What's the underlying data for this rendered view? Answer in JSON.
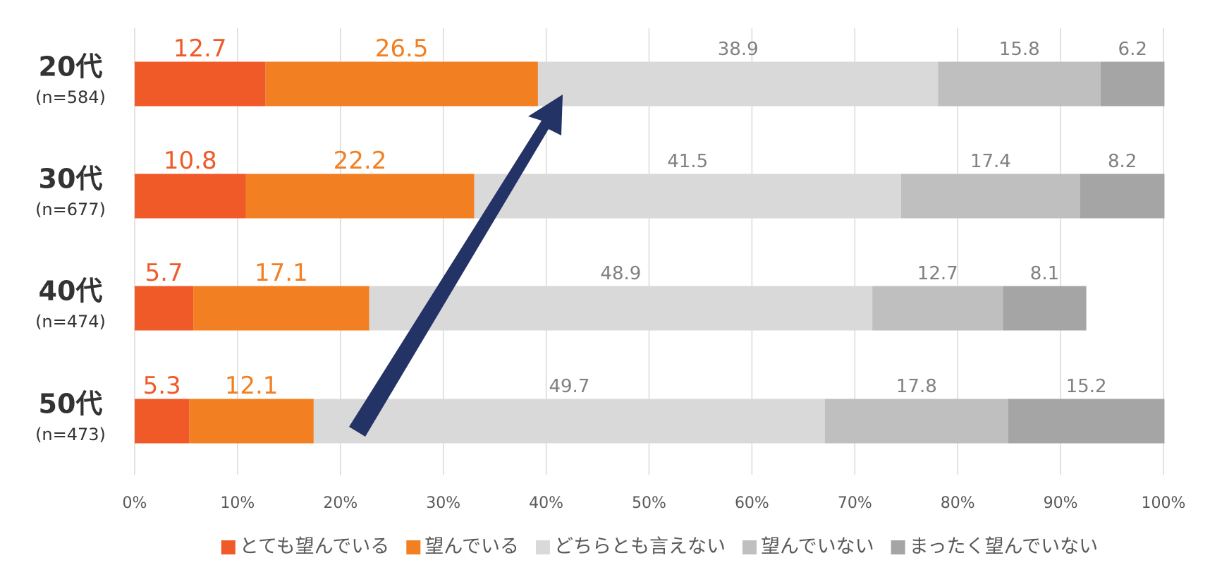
{
  "chart_data": {
    "type": "stacked-bar-horizontal",
    "categories": [
      "20代",
      "30代",
      "40代",
      "50代"
    ],
    "category_sublabels": [
      "(n=584)",
      "(n=677)",
      "(n=474)",
      "(n=473)"
    ],
    "series": [
      {
        "name": "とても望んでいる",
        "color": "#f05a28",
        "label_color": "#f05a28",
        "values": [
          12.7,
          10.8,
          5.7,
          5.3
        ]
      },
      {
        "name": "望んでいる",
        "color": "#f27f22",
        "label_color": "#f27f22",
        "values": [
          26.5,
          22.2,
          17.1,
          12.1
        ]
      },
      {
        "name": "どちらとも言えない",
        "color": "#d9d9d9",
        "label_color": "#808080",
        "values": [
          38.9,
          41.5,
          48.9,
          49.7
        ]
      },
      {
        "name": "望んでいない",
        "color": "#bfbfbf",
        "label_color": "#808080",
        "values": [
          15.8,
          17.4,
          12.7,
          17.8
        ]
      },
      {
        "name": "まったく望んでいない",
        "color": "#a5a5a5",
        "label_color": "#808080",
        "values": [
          6.2,
          8.2,
          8.1,
          15.2
        ]
      }
    ],
    "xlim": [
      0,
      100
    ],
    "xticks": [
      {
        "value": 0,
        "label": "0%"
      },
      {
        "value": 10,
        "label": "10%"
      },
      {
        "value": 20,
        "label": "20%"
      },
      {
        "value": 30,
        "label": "30%"
      },
      {
        "value": 40,
        "label": "40%"
      },
      {
        "value": 50,
        "label": "50%"
      },
      {
        "value": 60,
        "label": "60%"
      },
      {
        "value": 70,
        "label": "70%"
      },
      {
        "value": 80,
        "label": "80%"
      },
      {
        "value": 90,
        "label": "90%"
      },
      {
        "value": 100,
        "label": "100%"
      }
    ],
    "grid": true,
    "legend": "bottom"
  }
}
